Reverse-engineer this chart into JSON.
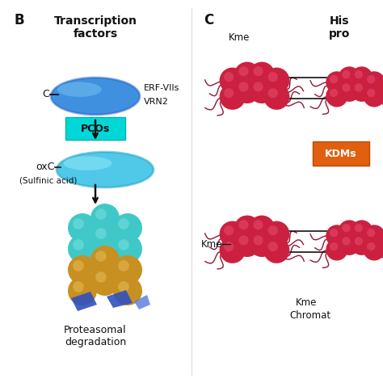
{
  "bg_color": "#ffffff",
  "panel_B_label": "B",
  "panel_C_label": "C",
  "title_B": "Transcription\nfactors",
  "title_C_partial": "His\npro",
  "label_ERF1": "ERF-VIIs",
  "label_ERF2": "VRN2",
  "label_PCOs": "PCOs",
  "label_oxC": "oxC",
  "label_sulfinic": "(Sulfinic acid)",
  "label_proteasomal": "Proteasomal\ndegradation",
  "label_C_text": "C",
  "label_Kme_top": "Kme",
  "label_Kme_bot": "Kme",
  "label_Kme_chromat1": "Kme",
  "label_Kme_chromat2": "Chromat",
  "label_KDMs": "KDMs",
  "blue_ellipse_dark": "#2060c8",
  "blue_ellipse_mid": "#4090e0",
  "blue_ellipse_light": "#70c0f0",
  "cyan_ellipse_dark": "#20a0c0",
  "cyan_ellipse_mid": "#50c8e8",
  "cyan_ellipse_light": "#90e8f8",
  "pcos_bg": "#00d8d8",
  "pcos_border": "#00b0b0",
  "kdms_bg": "#e06010",
  "kdms_border": "#c04800",
  "teal_ball_color": "#40c8c8",
  "teal_ball_light": "#80e0e0",
  "gold_ball_color": "#c89020",
  "gold_ball_light": "#e8c060",
  "red_ball_color": "#cc2040",
  "red_ball_light": "#e85070",
  "blue_frag_color": "#3050c0",
  "blue_frag_light": "#6080e0",
  "arrow_color": "#111111",
  "text_color": "#111111",
  "dna_line_color": "#111111",
  "tail_color": "#800020"
}
